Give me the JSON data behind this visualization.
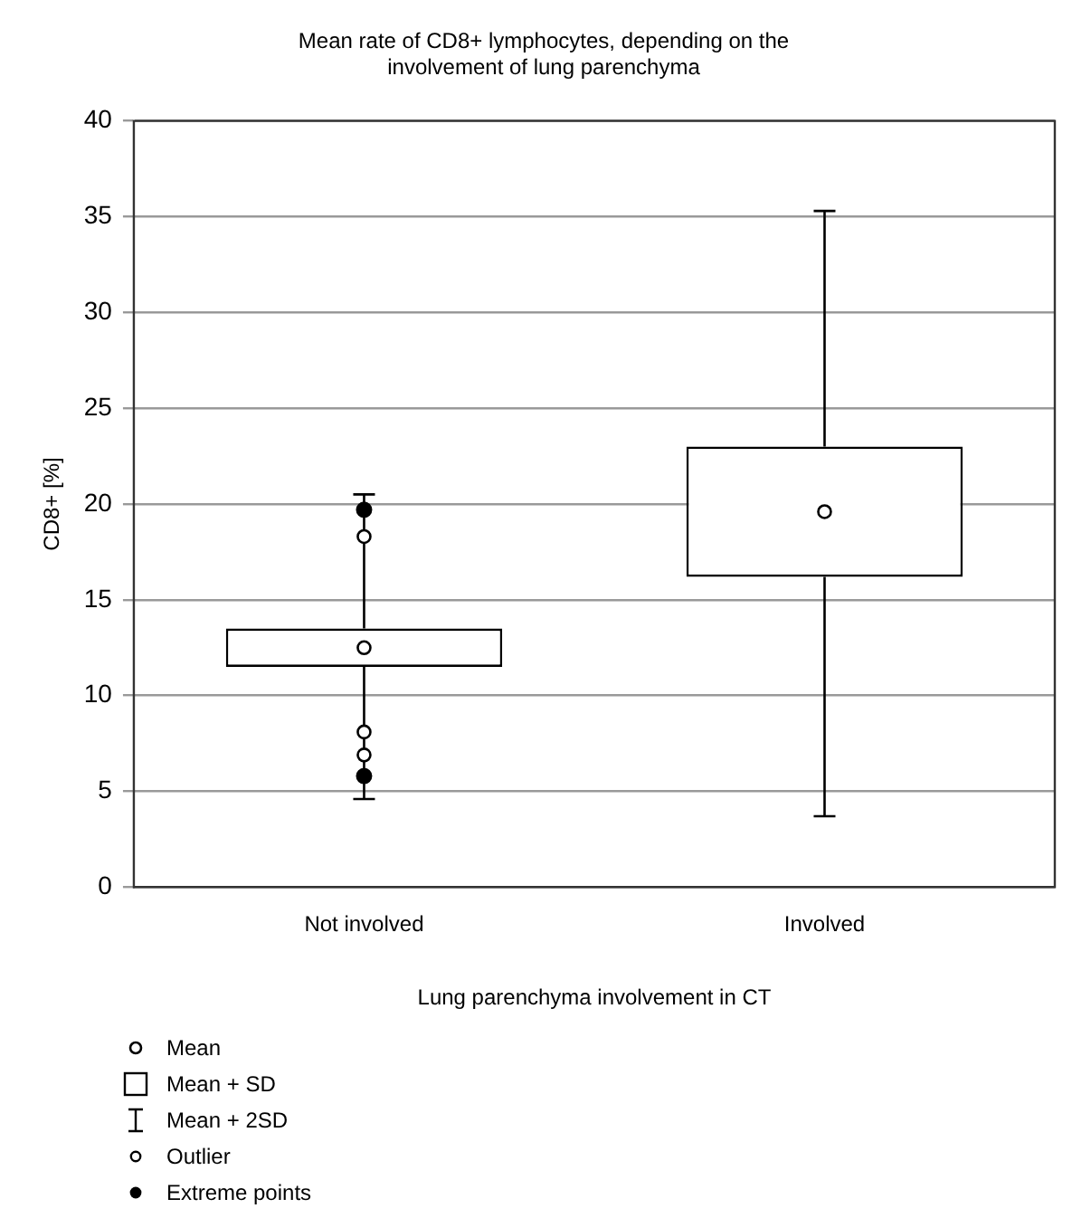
{
  "chart_data": {
    "type": "box",
    "title": "Mean rate of CD8+ lymphocytes, depending on the\ninvolvement of lung parenchyma",
    "xlabel": "Lung parenchyma involvement in CT",
    "ylabel": "CD8+ [%]",
    "categories": [
      "Not involved",
      "Involved"
    ],
    "boxes": [
      {
        "low": 4.6,
        "q1": 11.5,
        "q3": 13.5,
        "high": 20.5,
        "mean": 12.5,
        "outliers": [
          18.3,
          8.1,
          6.9
        ]
      },
      {
        "low": 3.7,
        "q1": 16.2,
        "q3": 23,
        "high": 35.3,
        "mean": 19.6
      }
    ],
    "series": [
      {
        "type": "scatter",
        "name": "Extreme points",
        "color": "#000000",
        "x": [
          "Not involved",
          "Not involved"
        ],
        "values": [
          19.7,
          5.8
        ]
      }
    ],
    "annotations": [
      "Mean",
      "Mean + SD",
      "Mean + 2SD",
      "Outlier"
    ],
    "ylim": [
      0,
      40
    ],
    "yticks": [
      0,
      5,
      10,
      15,
      20,
      25,
      30,
      35,
      40
    ],
    "grid": "y",
    "legend": "bottom left",
    "marker": "circle"
  }
}
